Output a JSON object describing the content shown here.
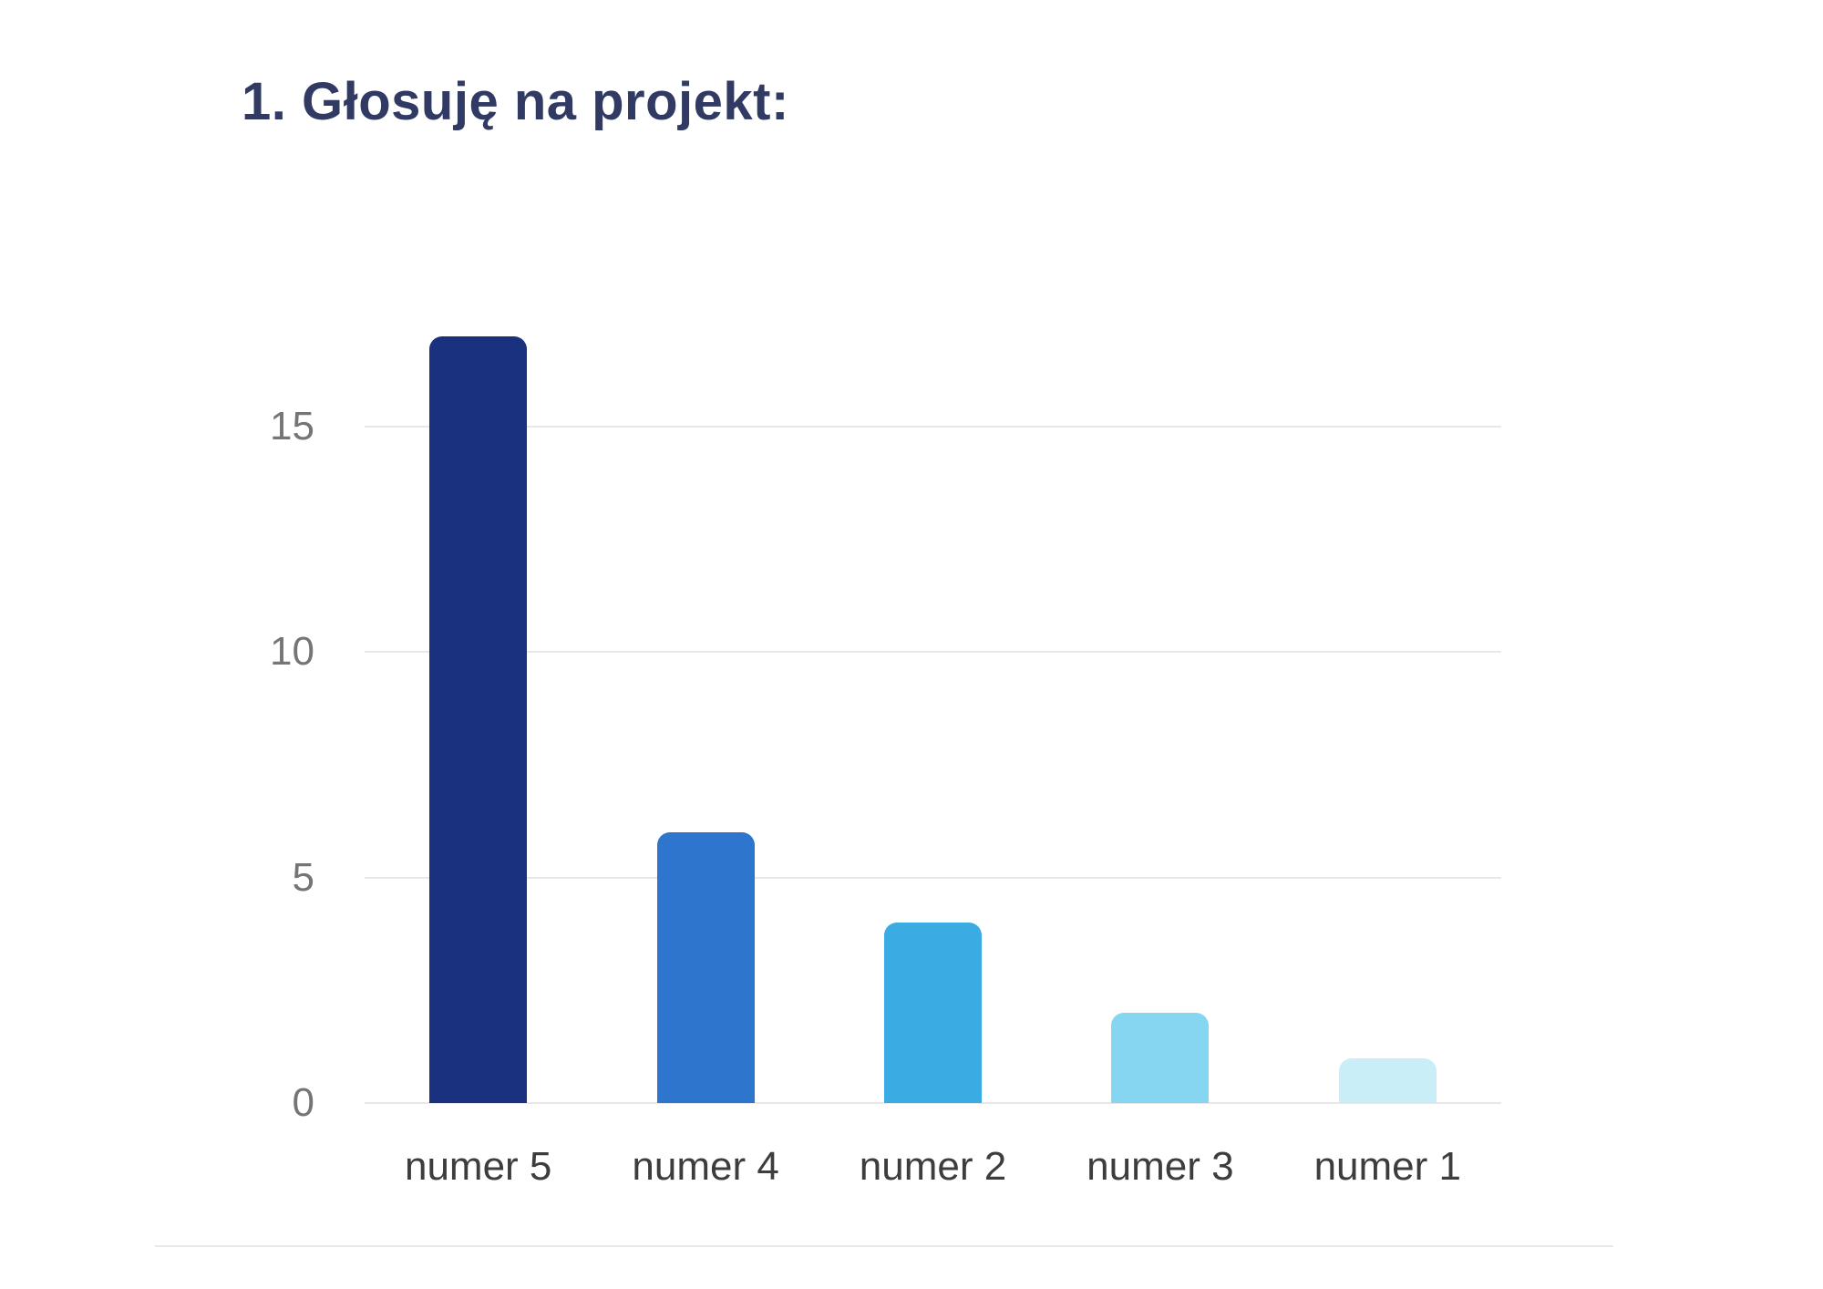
{
  "title": {
    "text": "1. Głosuję na projekt:",
    "color": "#303a63"
  },
  "chart_data": {
    "type": "bar",
    "title": "1. Głosuję na projekt:",
    "categories": [
      "numer 5",
      "numer 4",
      "numer 2",
      "numer 3",
      "numer 1"
    ],
    "values": [
      17,
      6,
      4,
      2,
      1
    ],
    "bar_colors": [
      "#1a3180",
      "#2e76cd",
      "#3babe4",
      "#86d6f1",
      "#c9eef8"
    ],
    "xlabel": "",
    "ylabel": "",
    "ylim": [
      0,
      17.8
    ],
    "yticks": [
      0,
      5,
      10,
      15
    ],
    "grid": true,
    "legend": false,
    "gridline_color": "#e8e8e8",
    "y_tick_label_color": "#757575",
    "x_category_label_color": "#3d3d3d"
  },
  "footer": {
    "divider_color": "#e8e8e8"
  }
}
